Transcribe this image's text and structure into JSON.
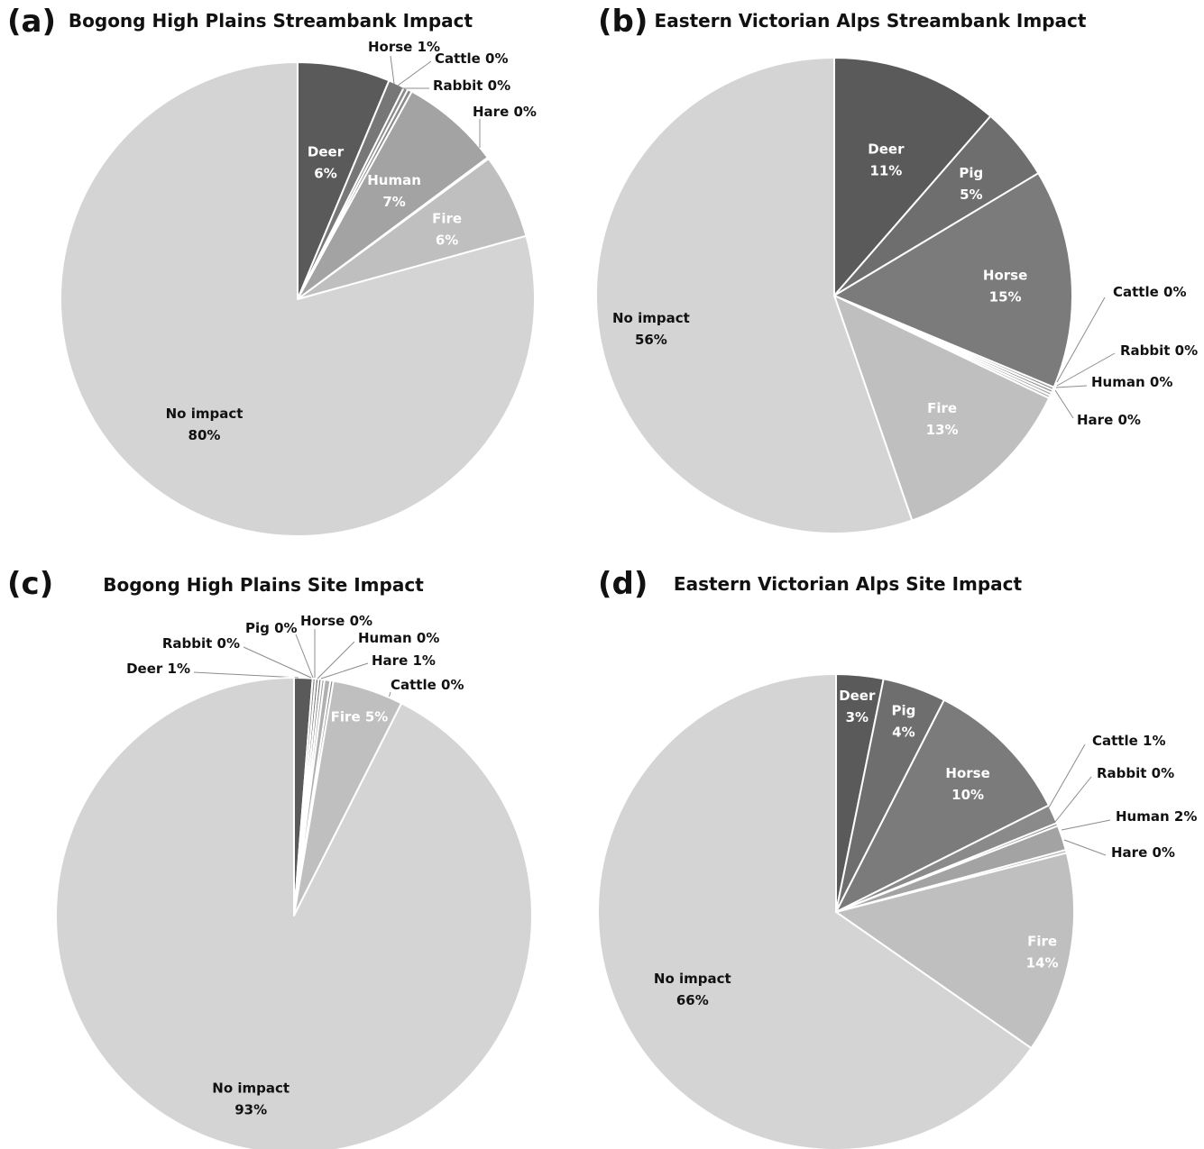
{
  "panels": [
    {
      "letter": "(a)",
      "title": "Bogong High Plains Streambank Impact"
    },
    {
      "letter": "(b)",
      "title": "Eastern Victorian Alps Streambank Impact"
    },
    {
      "letter": "(c)",
      "title": "Bogong High Plains Site Impact"
    },
    {
      "letter": "(d)",
      "title": "Eastern Victorian Alps Site Impact"
    }
  ],
  "chart_data": [
    {
      "type": "pie",
      "title": "Bogong High Plains Streambank Impact",
      "slices": [
        {
          "label": "Deer",
          "value": 6,
          "pct": "6%",
          "color": "#5a5a5a"
        },
        {
          "label": "Horse",
          "value": 1,
          "pct": "1%",
          "color": "#777777"
        },
        {
          "label": "Cattle",
          "value": 0,
          "pct": "0%",
          "color": "#8a8a8a"
        },
        {
          "label": "Rabbit",
          "value": 0,
          "pct": "0%",
          "color": "#8a8a8a"
        },
        {
          "label": "Human",
          "value": 7,
          "pct": "7%",
          "color": "#a3a3a3"
        },
        {
          "label": "Hare",
          "value": 0,
          "pct": "0%",
          "color": "#b0b0b0"
        },
        {
          "label": "Fire",
          "value": 6,
          "pct": "6%",
          "color": "#bfbfbf"
        },
        {
          "label": "No impact",
          "value": 80,
          "pct": "80%",
          "color": "#d4d4d4"
        }
      ]
    },
    {
      "type": "pie",
      "title": "Eastern Victorian Alps Streambank Impact",
      "slices": [
        {
          "label": "Deer",
          "value": 11,
          "pct": "11%",
          "color": "#5a5a5a"
        },
        {
          "label": "Pig",
          "value": 5,
          "pct": "5%",
          "color": "#6e6e6e"
        },
        {
          "label": "Horse",
          "value": 15,
          "pct": "15%",
          "color": "#7b7b7b"
        },
        {
          "label": "Cattle",
          "value": 0,
          "pct": "0%",
          "color": "#8a8a8a"
        },
        {
          "label": "Rabbit",
          "value": 0,
          "pct": "0%",
          "color": "#8a8a8a"
        },
        {
          "label": "Human",
          "value": 0,
          "pct": "0%",
          "color": "#a3a3a3"
        },
        {
          "label": "Hare",
          "value": 0,
          "pct": "0%",
          "color": "#b0b0b0"
        },
        {
          "label": "Fire",
          "value": 13,
          "pct": "13%",
          "color": "#bfbfbf"
        },
        {
          "label": "No impact",
          "value": 56,
          "pct": "56%",
          "color": "#d4d4d4"
        }
      ]
    },
    {
      "type": "pie",
      "title": "Bogong High Plains Site Impact",
      "slices": [
        {
          "label": "Deer",
          "value": 1,
          "pct": "1%",
          "color": "#5a5a5a"
        },
        {
          "label": "Rabbit",
          "value": 0,
          "pct": "0%",
          "color": "#8a8a8a"
        },
        {
          "label": "Pig",
          "value": 0,
          "pct": "0%",
          "color": "#6e6e6e"
        },
        {
          "label": "Horse",
          "value": 0,
          "pct": "0%",
          "color": "#7b7b7b"
        },
        {
          "label": "Human",
          "value": 0,
          "pct": "0%",
          "color": "#a3a3a3"
        },
        {
          "label": "Hare",
          "value": 1,
          "pct": "1%",
          "color": "#b0b0b0"
        },
        {
          "label": "Cattle",
          "value": 0,
          "pct": "0%",
          "color": "#8a8a8a"
        },
        {
          "label": "Fire",
          "value": 5,
          "pct": "5%",
          "color": "#bfbfbf"
        },
        {
          "label": "No impact",
          "value": 93,
          "pct": "93%",
          "color": "#d4d4d4"
        }
      ]
    },
    {
      "type": "pie",
      "title": "Eastern Victorian Alps Site Impact",
      "slices": [
        {
          "label": "Deer",
          "value": 3,
          "pct": "3%",
          "color": "#5a5a5a"
        },
        {
          "label": "Pig",
          "value": 4,
          "pct": "4%",
          "color": "#6e6e6e"
        },
        {
          "label": "Horse",
          "value": 10,
          "pct": "10%",
          "color": "#7b7b7b"
        },
        {
          "label": "Cattle",
          "value": 1,
          "pct": "1%",
          "color": "#8a8a8a"
        },
        {
          "label": "Rabbit",
          "value": 0,
          "pct": "0%",
          "color": "#8a8a8a"
        },
        {
          "label": "Human",
          "value": 2,
          "pct": "2%",
          "color": "#a3a3a3"
        },
        {
          "label": "Hare",
          "value": 0,
          "pct": "0%",
          "color": "#b0b0b0"
        },
        {
          "label": "Fire",
          "value": 14,
          "pct": "14%",
          "color": "#bfbfbf"
        },
        {
          "label": "No impact",
          "value": 66,
          "pct": "66%",
          "color": "#d4d4d4"
        }
      ]
    }
  ]
}
